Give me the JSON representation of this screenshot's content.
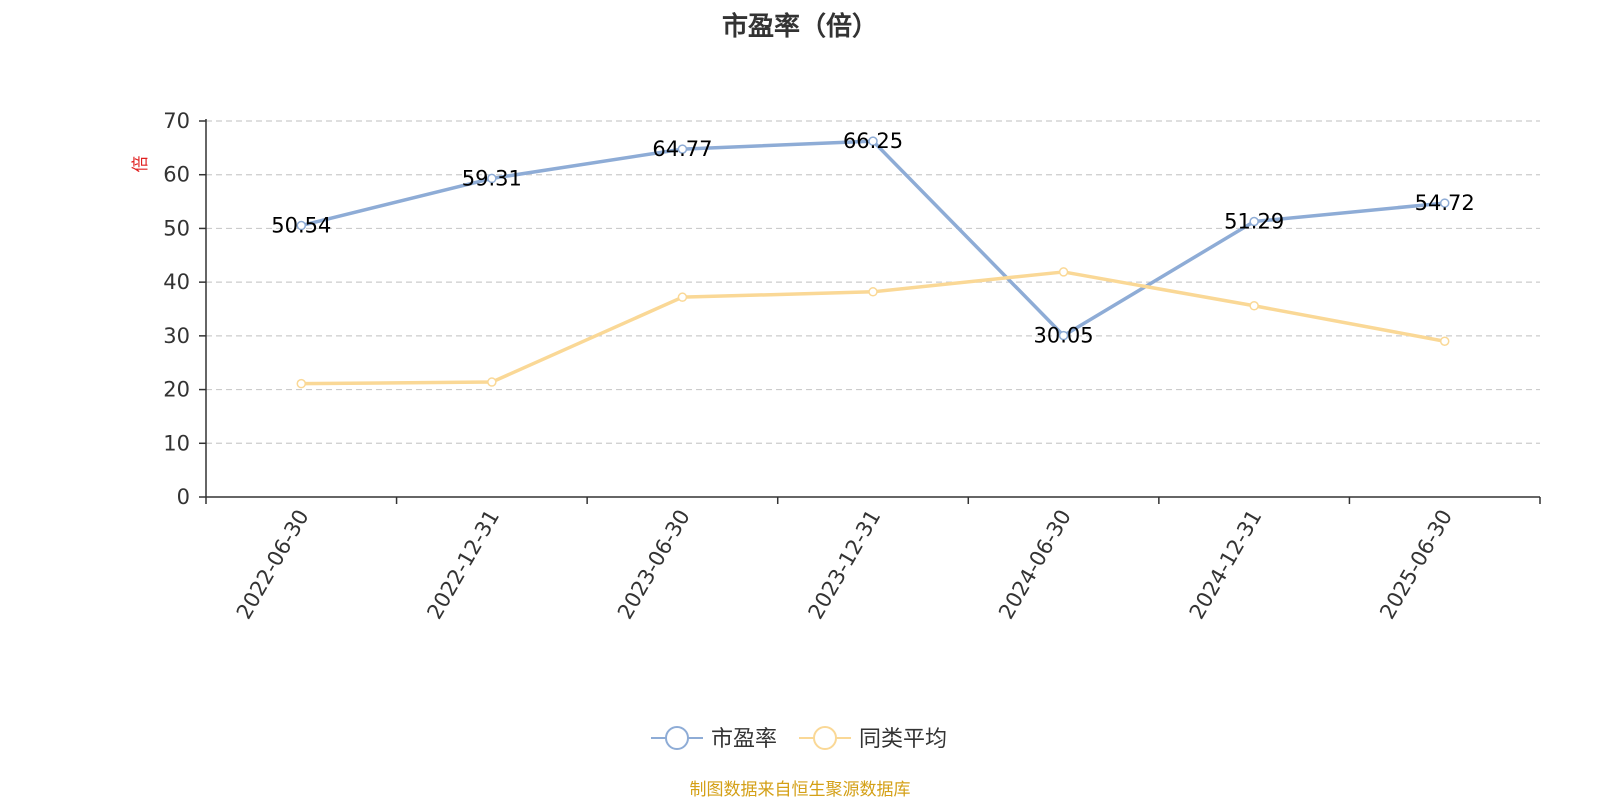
{
  "chart_data": {
    "type": "line",
    "title": "市盈率（倍）",
    "ylabel": "倍",
    "xlabel": "",
    "ylim": [
      0,
      70
    ],
    "yticks": [
      0,
      10,
      20,
      30,
      40,
      50,
      60,
      70
    ],
    "grid": true,
    "legend_position": "bottom",
    "categories": [
      "2022-06-30",
      "2022-12-31",
      "2023-06-30",
      "2023-12-31",
      "2024-06-30",
      "2024-12-31",
      "2025-06-30"
    ],
    "series": [
      {
        "name": "市盈率",
        "color": "#8eacd6",
        "values": [
          50.54,
          59.31,
          64.77,
          66.25,
          30.05,
          51.29,
          54.72
        ],
        "show_labels": true
      },
      {
        "name": "同类平均",
        "color": "#fad896",
        "values": [
          21.1,
          21.4,
          37.2,
          38.2,
          41.9,
          35.6,
          29.0
        ],
        "show_labels": false
      }
    ]
  },
  "source_note": "制图数据来自恒生聚源数据库"
}
